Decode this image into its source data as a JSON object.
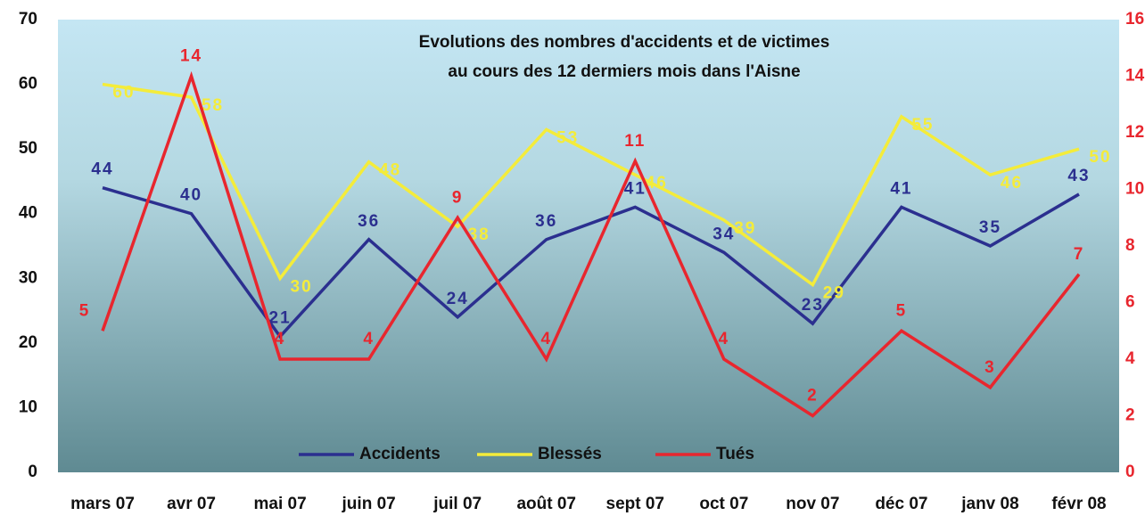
{
  "chart_data": {
    "type": "line",
    "title": [
      "Evolutions des nombres d'accidents et de victimes",
      "au cours des 12 dermiers mois dans l'Aisne"
    ],
    "categories": [
      "mars 07",
      "avr 07",
      "mai 07",
      "juin 07",
      "juil 07",
      "août 07",
      "sept 07",
      "oct 07",
      "nov 07",
      "déc 07",
      "janv 08",
      "févr 08"
    ],
    "series": [
      {
        "name": "Accidents",
        "color": "#2b2f8f",
        "values": [
          44,
          40,
          21,
          36,
          24,
          36,
          41,
          34,
          23,
          41,
          35,
          43
        ]
      },
      {
        "name": "Blessés",
        "color": "#f4ec3a",
        "values": [
          60,
          58,
          30,
          48,
          38,
          53,
          46,
          39,
          29,
          55,
          46,
          50
        ]
      },
      {
        "name": "Tués",
        "color": "#e8262e",
        "axis": "y2",
        "values": [
          5,
          14,
          4,
          4,
          9,
          4,
          11,
          4,
          2,
          5,
          3,
          7
        ]
      }
    ],
    "ylim": [
      0,
      70
    ],
    "yticks": [
      0,
      10,
      20,
      30,
      40,
      50,
      60,
      70
    ],
    "y2lim": [
      0,
      16
    ],
    "y2ticks": [
      0,
      2,
      4,
      6,
      8,
      10,
      12,
      14,
      16
    ],
    "legend": "bottom"
  }
}
